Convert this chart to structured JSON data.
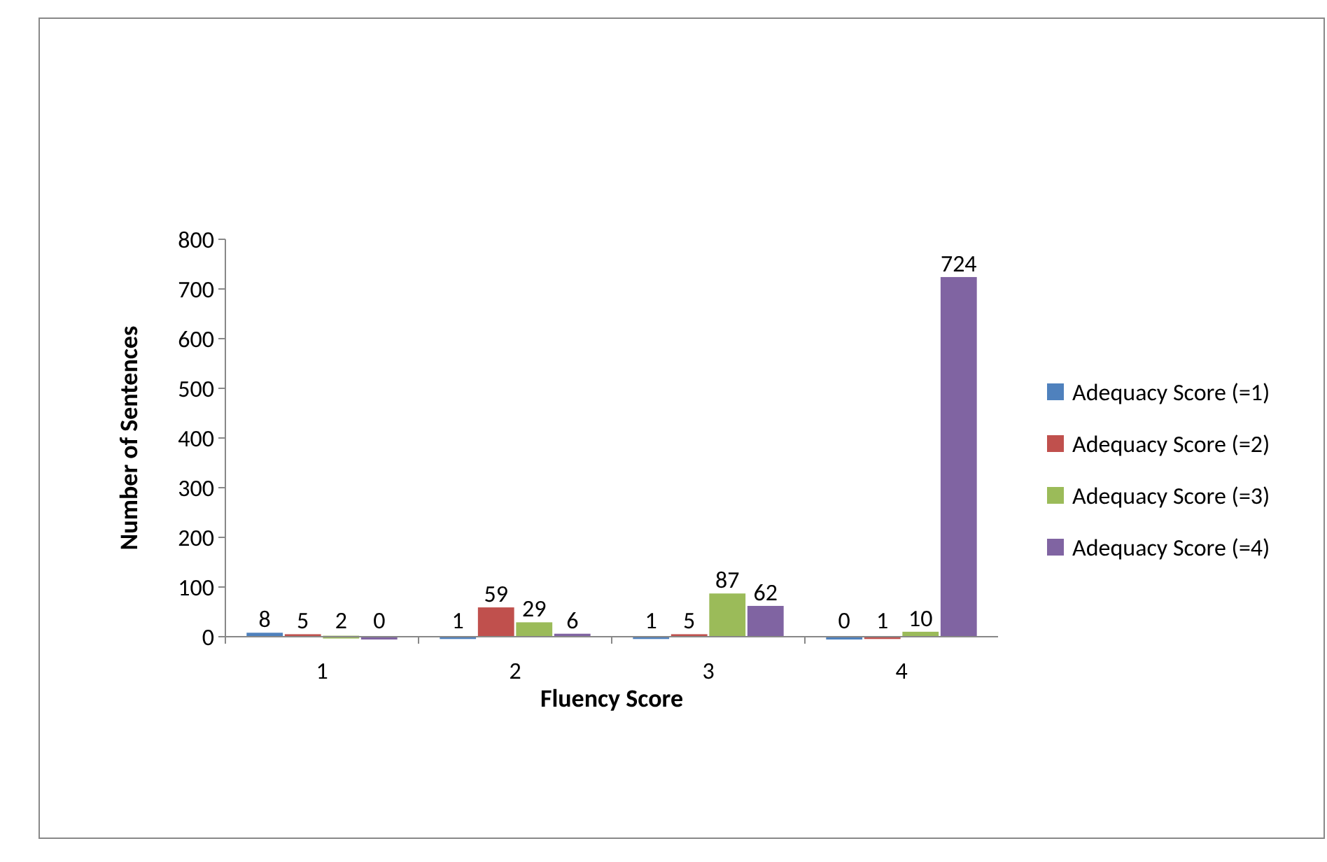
{
  "chart_data": {
    "type": "bar",
    "xlabel": "Fluency Score",
    "ylabel": "Number of Sentences",
    "categories": [
      "1",
      "2",
      "3",
      "4"
    ],
    "series": [
      {
        "name": "Adequacy Score (=1)",
        "color": "#4f81bd",
        "values": [
          8,
          1,
          1,
          0
        ]
      },
      {
        "name": "Adequacy Score (=2)",
        "color": "#c0504d",
        "values": [
          5,
          59,
          5,
          1
        ]
      },
      {
        "name": "Adequacy Score (=3)",
        "color": "#9bbb59",
        "values": [
          2,
          29,
          87,
          10
        ]
      },
      {
        "name": "Adequacy Score (=4)",
        "color": "#8064a2",
        "values": [
          0,
          6,
          62,
          724
        ]
      }
    ],
    "ylim": [
      0,
      800
    ],
    "yticks": [
      0,
      100,
      200,
      300,
      400,
      500,
      600,
      700,
      800
    ],
    "grid": false,
    "legend": "right",
    "data_labels": true
  }
}
